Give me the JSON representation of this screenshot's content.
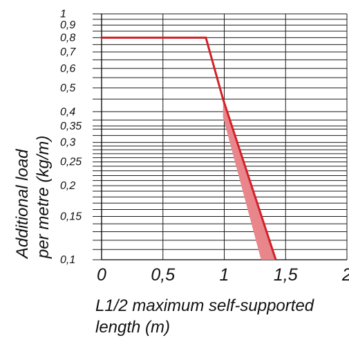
{
  "chart_data": {
    "type": "line",
    "title": "",
    "xlabel_lines": [
      "L1/2 maximum self-supported",
      "length (m)"
    ],
    "ylabel_lines": [
      "Additional load",
      "per metre (kg/m)"
    ],
    "y_scale": "log",
    "xlim": [
      0,
      2
    ],
    "ylim": [
      0.1,
      1
    ],
    "x_ticks": [
      {
        "value": 0,
        "label": "0"
      },
      {
        "value": 0.5,
        "label": "0,5"
      },
      {
        "value": 1,
        "label": "1"
      },
      {
        "value": 1.5,
        "label": "1,5"
      },
      {
        "value": 2,
        "label": "2"
      }
    ],
    "y_ticks": [
      {
        "value": 1,
        "label": "1"
      },
      {
        "value": 0.9,
        "label": "0,9"
      },
      {
        "value": 0.8,
        "label": "0,8"
      },
      {
        "value": 0.7,
        "label": "0,7"
      },
      {
        "value": 0.6,
        "label": "0,6"
      },
      {
        "value": 0.5,
        "label": "0,5"
      },
      {
        "value": 0.4,
        "label": "0,4"
      },
      {
        "value": 0.35,
        "label": "0,35"
      },
      {
        "value": 0.3,
        "label": "0,3"
      },
      {
        "value": 0.25,
        "label": "0,25"
      },
      {
        "value": 0.2,
        "label": "0,2"
      },
      {
        "value": 0.15,
        "label": "0,15"
      },
      {
        "value": 0.1,
        "label": "0,1"
      }
    ],
    "minor_y_gridlines": [
      0.11,
      0.12,
      0.13,
      0.14,
      0.16,
      0.17,
      0.18,
      0.19,
      0.21,
      0.22,
      0.23,
      0.24,
      0.26,
      0.27,
      0.28,
      0.29,
      0.32,
      0.34,
      0.37,
      0.45,
      0.55,
      0.65,
      0.75,
      0.85,
      0.95
    ],
    "grid": true,
    "series": [
      {
        "color": "#d42027",
        "x": [
          0,
          0.85,
          0.99,
          1.42
        ],
        "y": [
          0.8,
          0.8,
          0.45,
          0.1
        ]
      }
    ],
    "shaded_band": {
      "color": "#e8868b",
      "upper_x": [
        0.99,
        1.42
      ],
      "upper_y": [
        0.45,
        0.1
      ],
      "lower_x": [
        0.99,
        1.3
      ],
      "lower_y": [
        0.38,
        0.1
      ]
    }
  }
}
